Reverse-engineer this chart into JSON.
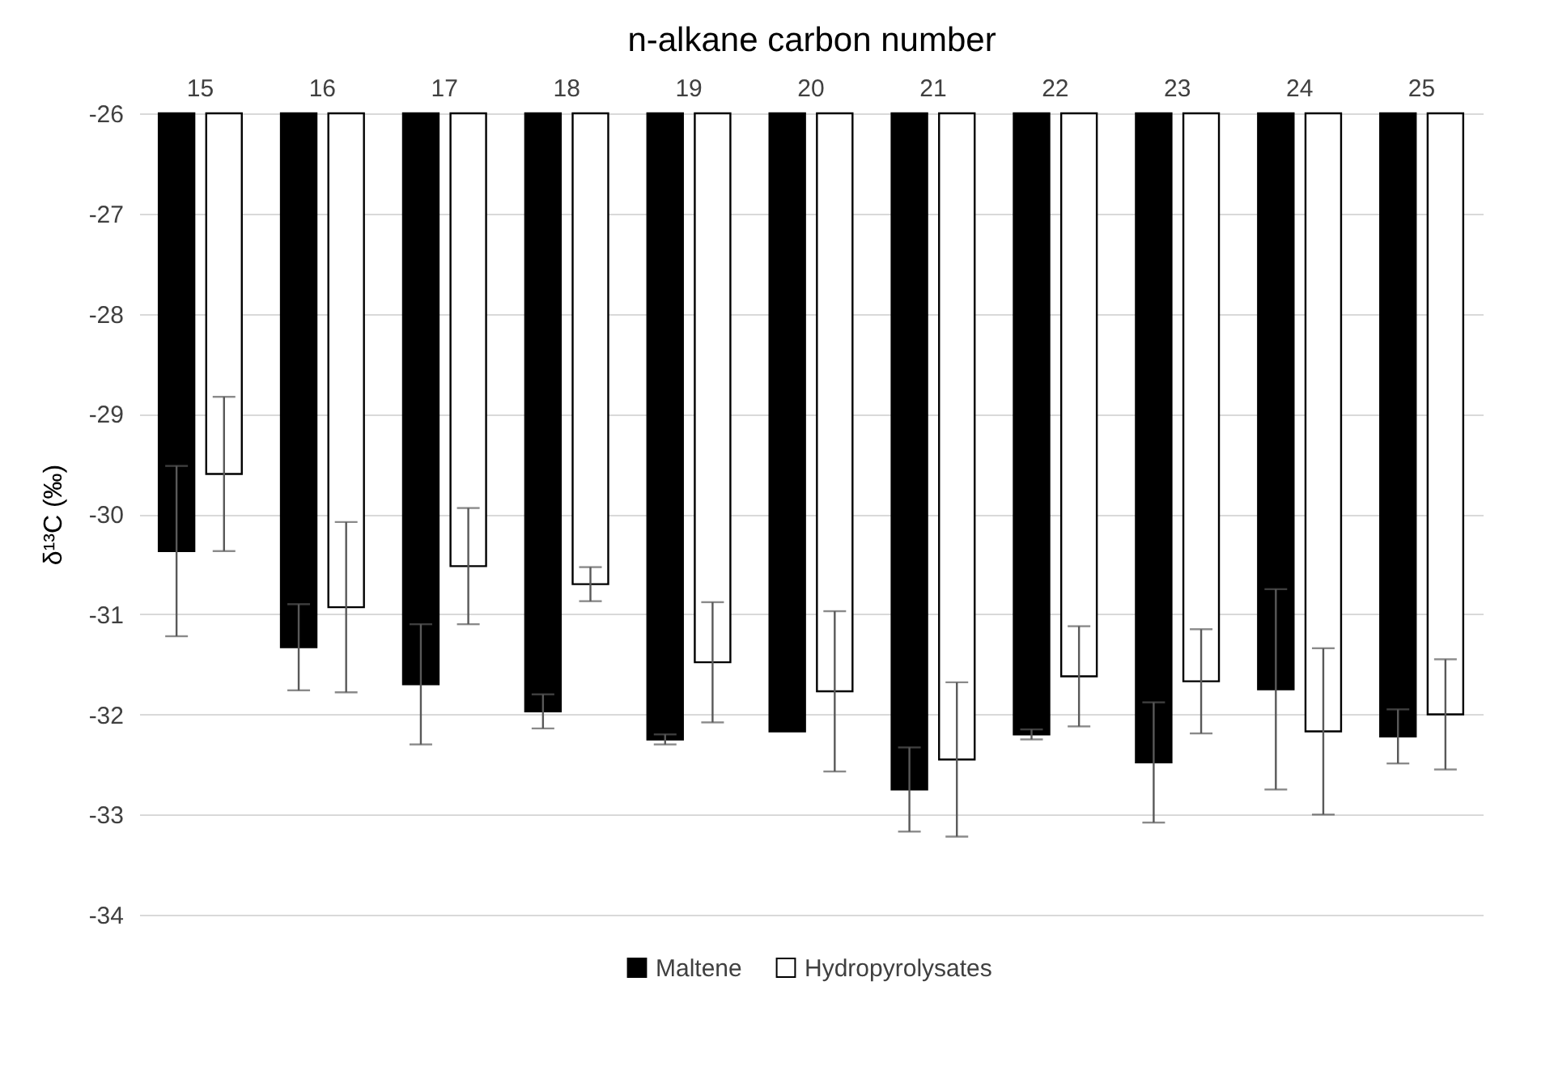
{
  "chart_data": {
    "type": "bar",
    "xlabel": "n-alkane carbon number",
    "ylabel": "δ¹³C (‰)",
    "categories": [
      "15",
      "16",
      "17",
      "18",
      "19",
      "20",
      "21",
      "22",
      "23",
      "24",
      "25"
    ],
    "series": [
      {
        "name": "Maltene",
        "color": "#000000",
        "values": [
          -30.37,
          -31.33,
          -31.7,
          -31.97,
          -32.25,
          -32.17,
          -32.75,
          -32.2,
          -32.48,
          -31.75,
          -32.22
        ],
        "errors": [
          0.85,
          0.43,
          0.6,
          0.17,
          0.05,
          null,
          0.42,
          0.05,
          0.6,
          1.0,
          0.27
        ]
      },
      {
        "name": "Hydropyrolysates",
        "color": "#ffffff",
        "values": [
          -29.6,
          -30.93,
          -30.52,
          -30.7,
          -31.48,
          -31.77,
          -32.45,
          -31.62,
          -31.67,
          -32.17,
          -32.0
        ],
        "errors": [
          0.77,
          0.85,
          0.58,
          0.17,
          0.6,
          0.8,
          0.77,
          0.5,
          0.52,
          0.83,
          0.55
        ]
      }
    ],
    "ylim": [
      -34,
      -26
    ],
    "yticks": [
      -26,
      -27,
      -28,
      -29,
      -30,
      -31,
      -32,
      -33,
      -34
    ],
    "grid": "y",
    "legend": "bottom"
  }
}
